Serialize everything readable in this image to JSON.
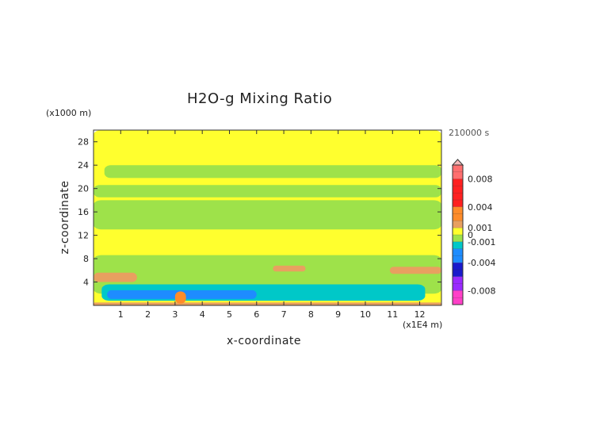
{
  "chart_data": {
    "type": "heatmap",
    "title": "H2O-g Mixing Ratio",
    "xlabel": "x-coordinate",
    "ylabel": "z-coordinate",
    "x_unit_label": "(x1E4 m)",
    "y_unit_label": "(x1000 m)",
    "time_label": "210000 s",
    "xlim": [
      0,
      12.8
    ],
    "ylim": [
      0,
      30
    ],
    "x_ticks": [
      1,
      2,
      3,
      4,
      5,
      6,
      7,
      8,
      9,
      10,
      11,
      12
    ],
    "y_ticks": [
      4,
      8,
      12,
      16,
      20,
      24,
      28
    ],
    "colorbar": {
      "tick_labels": [
        "0.008",
        "0.004",
        "0.001",
        "0",
        "-0.001",
        "-0.004",
        "-0.008"
      ],
      "tick_values": [
        0.008,
        0.004,
        0.001,
        0,
        -0.001,
        -0.004,
        -0.008
      ],
      "range": [
        -0.01,
        0.01
      ],
      "colors": {
        "above_max": "#f4b8b8",
        "0.008": "#ff6f6f",
        "0.004": "#ff2020",
        "0.002": "#ff8c2a",
        "0.001": "#e8a060",
        "0": "#ffff2e",
        "-0.001": "#9ee24a",
        "-0.002": "#00c8c8",
        "-0.004": "#1e8cff",
        "-0.006": "#1a1acc",
        "-0.008": "#9a2aff",
        "below_min": "#ff40c8"
      }
    },
    "regions": [
      {
        "level": "0",
        "x": [
          0,
          12.8
        ],
        "z": [
          0,
          30
        ]
      },
      {
        "level": "-0.001",
        "x": [
          0.4,
          12.8
        ],
        "z": [
          21.8,
          24.0
        ]
      },
      {
        "level": "-0.001",
        "x": [
          0,
          12.8
        ],
        "z": [
          18.5,
          20.6
        ]
      },
      {
        "level": "-0.001",
        "x": [
          0,
          12.8
        ],
        "z": [
          13.0,
          18.0
        ]
      },
      {
        "level": "-0.001",
        "x": [
          0,
          12.8
        ],
        "z": [
          2.0,
          8.6
        ]
      },
      {
        "level": "0.001",
        "x": [
          0,
          1.6
        ],
        "z": [
          4.0,
          5.6
        ]
      },
      {
        "level": "0.001",
        "x": [
          6.6,
          7.8
        ],
        "z": [
          5.8,
          6.8
        ]
      },
      {
        "level": "0.001",
        "x": [
          10.9,
          12.8
        ],
        "z": [
          5.4,
          6.6
        ]
      },
      {
        "level": "-0.002",
        "x": [
          0.3,
          12.2
        ],
        "z": [
          0.8,
          3.6
        ]
      },
      {
        "level": "-0.004",
        "x": [
          0.5,
          6.0
        ],
        "z": [
          1.1,
          2.6
        ]
      },
      {
        "level": "0.001",
        "x": [
          0,
          12.8
        ],
        "z": [
          0,
          0.5
        ]
      },
      {
        "level": "0.002",
        "x": [
          3.0,
          3.4
        ],
        "z": [
          0.3,
          2.4
        ]
      }
    ]
  }
}
